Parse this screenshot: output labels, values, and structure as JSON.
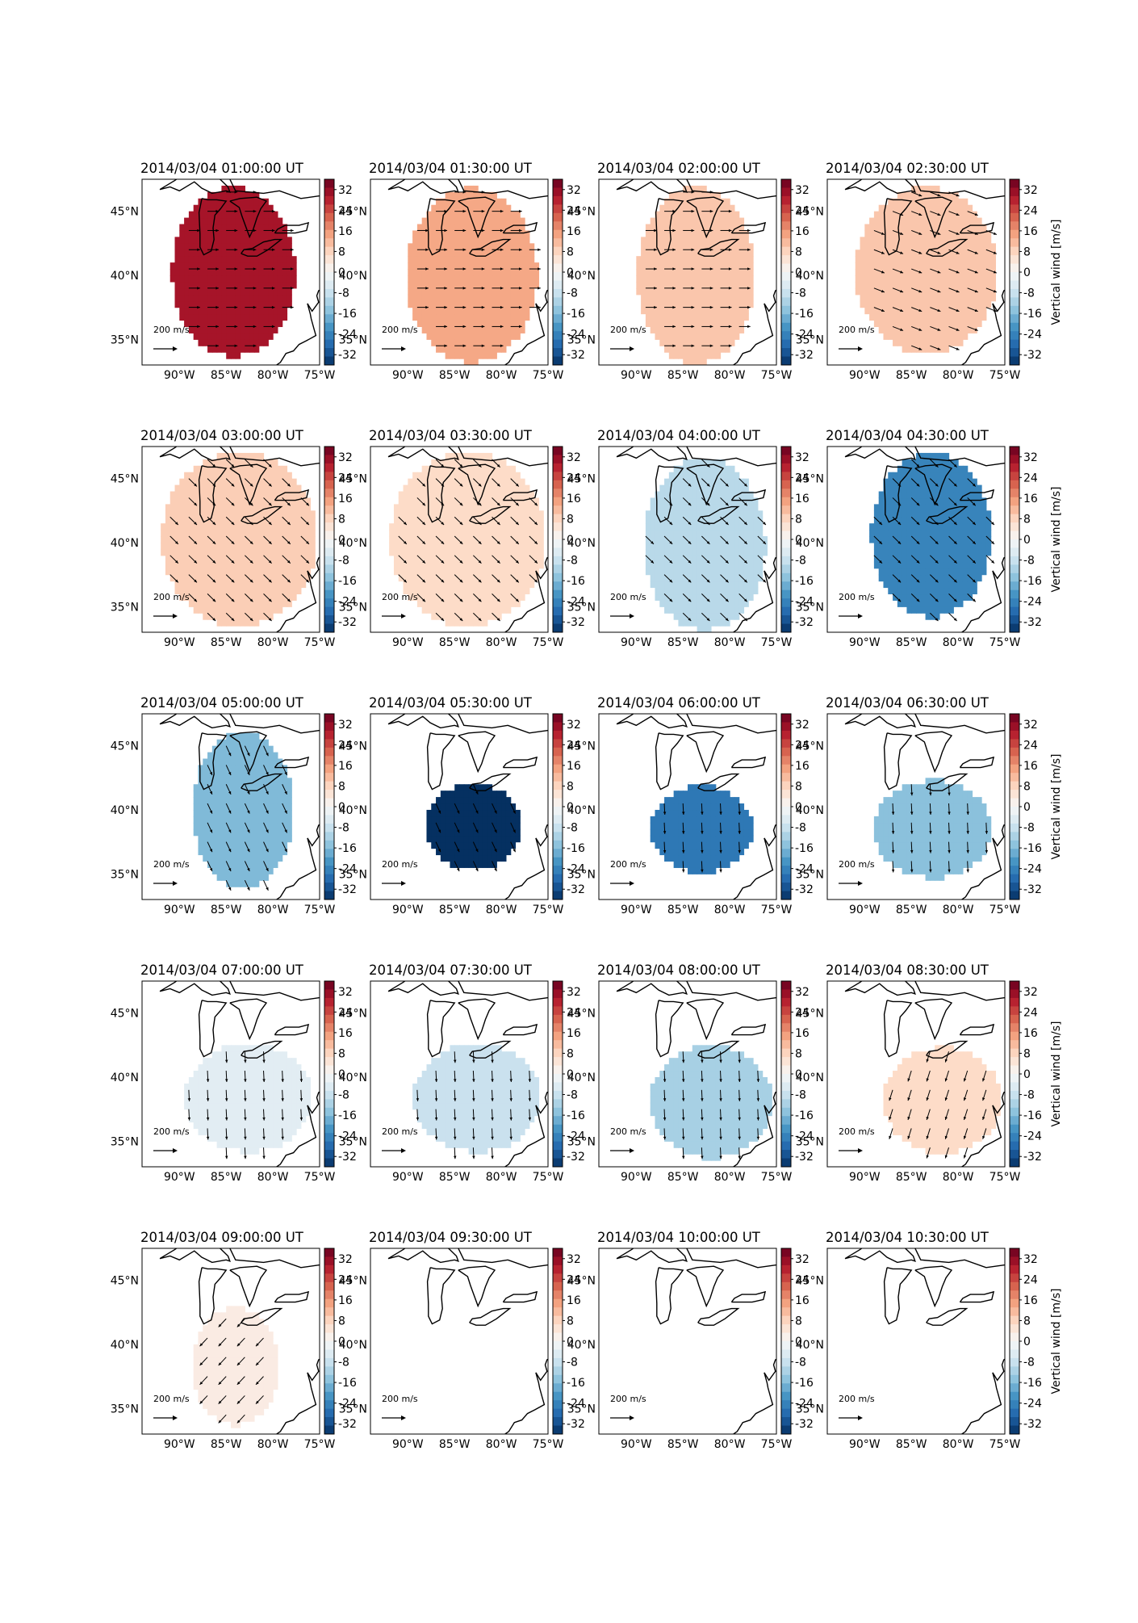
{
  "figure": {
    "colorbar_label": "Vertical wind [m/s]",
    "colorbar_ticks": [
      "32",
      "24",
      "16",
      "8",
      "0",
      "-8",
      "-16",
      "-24",
      "-32"
    ],
    "lat_ticks": [
      "45°N",
      "40°N",
      "35°N"
    ],
    "lon_ticks": [
      "90°W",
      "85°W",
      "80°W",
      "75°W"
    ],
    "scale_label": "200 m/s",
    "colormap": [
      "#053061",
      "#2166ac",
      "#4393c3",
      "#92c5de",
      "#d1e5f0",
      "#f7f7f7",
      "#fddbc7",
      "#f4a582",
      "#d6604d",
      "#b2182b",
      "#67001f"
    ]
  },
  "chart_data": [
    {
      "type": "heatmap",
      "title": "2014/03/04 01:00:00 UT",
      "xlim": [
        -94,
        -75
      ],
      "ylim": [
        33,
        47.5
      ],
      "clim": [
        -36,
        36
      ],
      "value": 30,
      "wind_direction": "east"
    },
    {
      "type": "heatmap",
      "title": "2014/03/04 01:30:00 UT",
      "xlim": [
        -94,
        -75
      ],
      "ylim": [
        33,
        47.5
      ],
      "clim": [
        -36,
        36
      ],
      "value": 14,
      "wind_direction": "east"
    },
    {
      "type": "heatmap",
      "title": "2014/03/04 02:00:00 UT",
      "xlim": [
        -94,
        -75
      ],
      "ylim": [
        33,
        47.5
      ],
      "clim": [
        -36,
        36
      ],
      "value": 10,
      "wind_direction": "east"
    },
    {
      "type": "heatmap",
      "title": "2014/03/04 02:30:00 UT",
      "xlim": [
        -94,
        -75
      ],
      "ylim": [
        33,
        47.5
      ],
      "clim": [
        -36,
        36
      ],
      "value": 10,
      "wind_direction": "east-southeast"
    },
    {
      "type": "heatmap",
      "title": "2014/03/04 03:00:00 UT",
      "xlim": [
        -94,
        -75
      ],
      "ylim": [
        33,
        47.5
      ],
      "clim": [
        -36,
        36
      ],
      "value": 9,
      "wind_direction": "southeast"
    },
    {
      "type": "heatmap",
      "title": "2014/03/04 03:30:00 UT",
      "xlim": [
        -94,
        -75
      ],
      "ylim": [
        33,
        47.5
      ],
      "clim": [
        -36,
        36
      ],
      "value": 7,
      "wind_direction": "southeast"
    },
    {
      "type": "heatmap",
      "title": "2014/03/04 04:00:00 UT",
      "xlim": [
        -94,
        -75
      ],
      "ylim": [
        33,
        47.5
      ],
      "clim": [
        -36,
        36
      ],
      "value": -10,
      "wind_direction": "southeast"
    },
    {
      "type": "heatmap",
      "title": "2014/03/04 04:30:00 UT",
      "xlim": [
        -94,
        -75
      ],
      "ylim": [
        33,
        47.5
      ],
      "clim": [
        -36,
        36
      ],
      "value": -24,
      "wind_direction": "southeast"
    },
    {
      "type": "heatmap",
      "title": "2014/03/04 05:00:00 UT",
      "xlim": [
        -94,
        -75
      ],
      "ylim": [
        33,
        47.5
      ],
      "clim": [
        -36,
        36
      ],
      "value": -16,
      "wind_direction": "south-southeast"
    },
    {
      "type": "heatmap",
      "title": "2014/03/04 05:30:00 UT",
      "xlim": [
        -94,
        -75
      ],
      "ylim": [
        33,
        47.5
      ],
      "clim": [
        -36,
        36
      ],
      "value": -36,
      "wind_direction": "south-southeast"
    },
    {
      "type": "heatmap",
      "title": "2014/03/04 06:00:00 UT",
      "xlim": [
        -94,
        -75
      ],
      "ylim": [
        33,
        47.5
      ],
      "clim": [
        -36,
        36
      ],
      "value": -26,
      "wind_direction": "south"
    },
    {
      "type": "heatmap",
      "title": "2014/03/04 06:30:00 UT",
      "xlim": [
        -94,
        -75
      ],
      "ylim": [
        33,
        47.5
      ],
      "clim": [
        -36,
        36
      ],
      "value": -15,
      "wind_direction": "south"
    },
    {
      "type": "heatmap",
      "title": "2014/03/04 07:00:00 UT",
      "xlim": [
        -94,
        -75
      ],
      "ylim": [
        33,
        47.5
      ],
      "clim": [
        -36,
        36
      ],
      "value": -4,
      "wind_direction": "south"
    },
    {
      "type": "heatmap",
      "title": "2014/03/04 07:30:00 UT",
      "xlim": [
        -94,
        -75
      ],
      "ylim": [
        33,
        47.5
      ],
      "clim": [
        -36,
        36
      ],
      "value": -8,
      "wind_direction": "south"
    },
    {
      "type": "heatmap",
      "title": "2014/03/04 08:00:00 UT",
      "xlim": [
        -94,
        -75
      ],
      "ylim": [
        33,
        47.5
      ],
      "clim": [
        -36,
        36
      ],
      "value": -12,
      "wind_direction": "south"
    },
    {
      "type": "heatmap",
      "title": "2014/03/04 08:30:00 UT",
      "xlim": [
        -94,
        -75
      ],
      "ylim": [
        33,
        47.5
      ],
      "clim": [
        -36,
        36
      ],
      "value": 7,
      "wind_direction": "south-southwest"
    },
    {
      "type": "heatmap",
      "title": "2014/03/04 09:00:00 UT",
      "xlim": [
        -94,
        -75
      ],
      "ylim": [
        33,
        47.5
      ],
      "clim": [
        -36,
        36
      ],
      "value": 3,
      "wind_direction": "southwest"
    },
    {
      "type": "heatmap",
      "title": "2014/03/04 09:30:00 UT",
      "xlim": [
        -94,
        -75
      ],
      "ylim": [
        33,
        47.5
      ],
      "clim": [
        -36,
        36
      ],
      "value": null,
      "wind_direction": ""
    },
    {
      "type": "heatmap",
      "title": "2014/03/04 10:00:00 UT",
      "xlim": [
        -94,
        -75
      ],
      "ylim": [
        33,
        47.5
      ],
      "clim": [
        -36,
        36
      ],
      "value": null,
      "wind_direction": ""
    },
    {
      "type": "heatmap",
      "title": "2014/03/04 10:30:00 UT",
      "xlim": [
        -94,
        -75
      ],
      "ylim": [
        33,
        47.5
      ],
      "clim": [
        -36,
        36
      ],
      "value": null,
      "wind_direction": ""
    }
  ]
}
